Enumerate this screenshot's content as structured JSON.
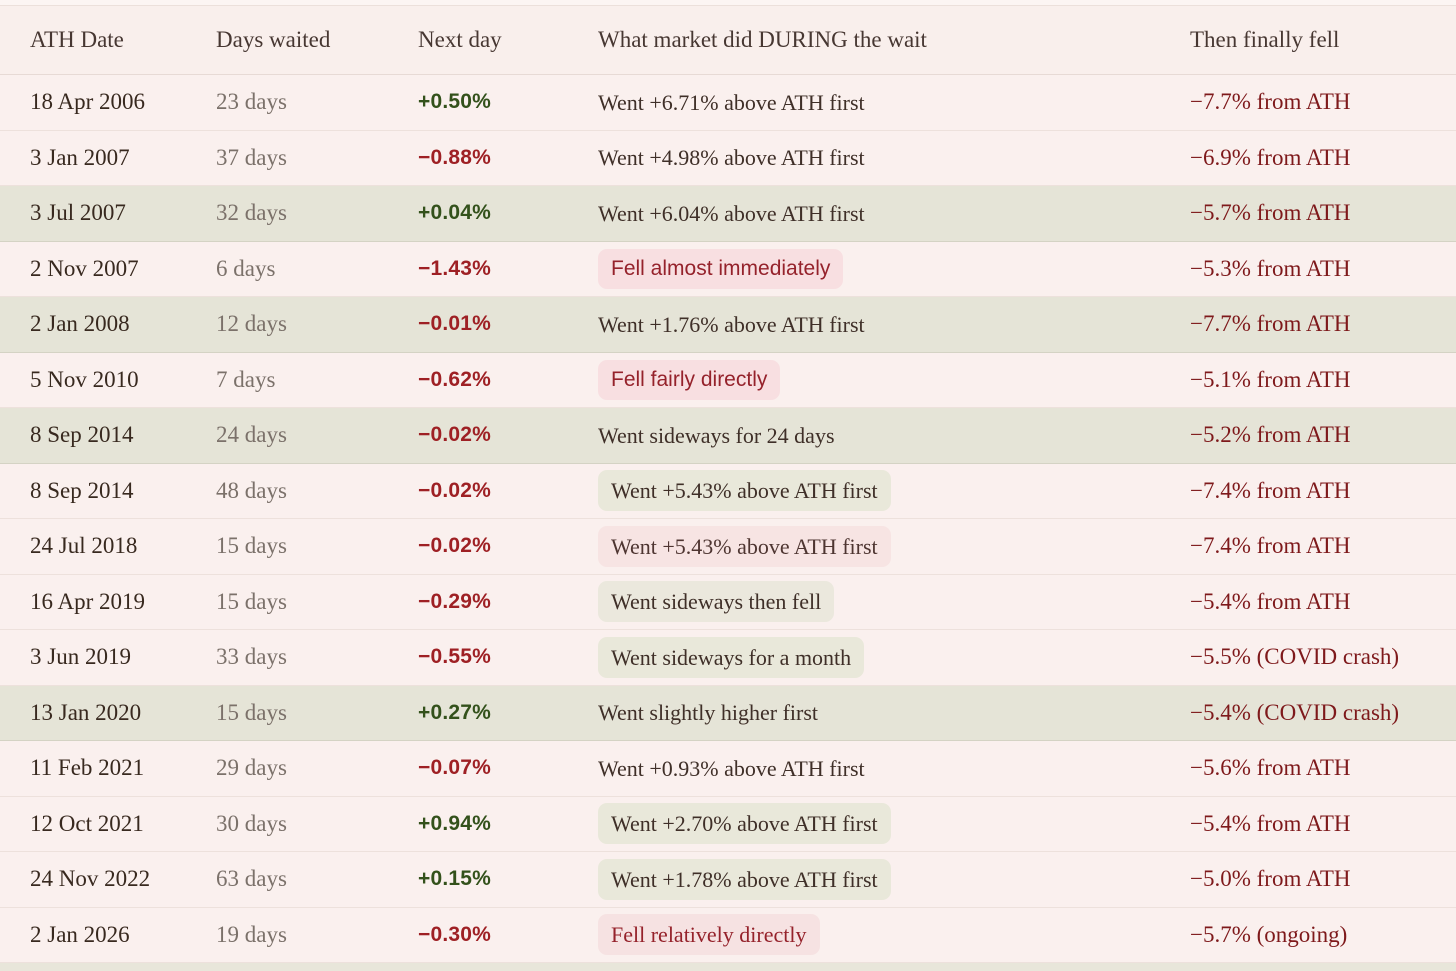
{
  "table": {
    "columns": [
      {
        "label": "ATH Date"
      },
      {
        "label": "Days waited"
      },
      {
        "label": "Next day"
      },
      {
        "label": "What market did DURING the wait"
      },
      {
        "label": "Then finally fell"
      }
    ],
    "rows": [
      {
        "date": "18 Apr 2006",
        "days": "23 days",
        "next_day": "+0.50%",
        "next_dir": "pos",
        "market": "Went +6.71% above ATH first",
        "market_style": "plain",
        "fell": "−7.7% from ATH",
        "row_bg": "pink"
      },
      {
        "date": "3 Jan 2007",
        "days": "37 days",
        "next_day": "−0.88%",
        "next_dir": "neg",
        "market": "Went +4.98% above ATH first",
        "market_style": "plain",
        "fell": "−6.9% from ATH",
        "row_bg": "pink"
      },
      {
        "date": "3 Jul 2007",
        "days": "32 days",
        "next_day": "+0.04%",
        "next_dir": "pos",
        "market": "Went +6.04% above ATH first",
        "market_style": "plain",
        "fell": "−5.7% from ATH",
        "row_bg": "green"
      },
      {
        "date": "2 Nov 2007",
        "days": "6 days",
        "next_day": "−1.43%",
        "next_dir": "neg",
        "market": "Fell almost immediately",
        "market_style": "pill-red-sans",
        "fell": "−5.3% from ATH",
        "row_bg": "pink"
      },
      {
        "date": "2 Jan 2008",
        "days": "12 days",
        "next_day": "−0.01%",
        "next_dir": "neg",
        "market": "Went +1.76% above ATH first",
        "market_style": "plain",
        "fell": "−7.7% from ATH",
        "row_bg": "green"
      },
      {
        "date": "5 Nov 2010",
        "days": "7 days",
        "next_day": "−0.62%",
        "next_dir": "neg",
        "market": "Fell fairly directly",
        "market_style": "pill-red-sans",
        "fell": "−5.1% from ATH",
        "row_bg": "pink"
      },
      {
        "date": "8 Sep 2014",
        "days": "24 days",
        "next_day": "−0.02%",
        "next_dir": "neg",
        "market": "Went sideways for 24 days",
        "market_style": "plain",
        "fell": "−5.2% from ATH",
        "row_bg": "green"
      },
      {
        "date": "8 Sep 2014",
        "days": "48 days",
        "next_day": "−0.02%",
        "next_dir": "neg",
        "market": "Went +5.43% above ATH first",
        "market_style": "pill-green",
        "fell": "−7.4% from ATH",
        "row_bg": "pink"
      },
      {
        "date": "24 Jul 2018",
        "days": "15 days",
        "next_day": "−0.02%",
        "next_dir": "neg",
        "market": "Went +5.43% above ATH first",
        "market_style": "pill-pink",
        "fell": "−7.4% from ATH",
        "row_bg": "pink"
      },
      {
        "date": "16 Apr 2019",
        "days": "15 days",
        "next_day": "−0.29%",
        "next_dir": "neg",
        "market": "Went sideways then fell",
        "market_style": "pill-tan",
        "fell": "−5.4% from ATH",
        "row_bg": "pink"
      },
      {
        "date": "3 Jun 2019",
        "days": "33 days",
        "next_day": "−0.55%",
        "next_dir": "neg",
        "market": "Went sideways for a month",
        "market_style": "pill-green",
        "fell": "−5.5% (COVID crash)",
        "row_bg": "pink"
      },
      {
        "date": "13 Jan 2020",
        "days": "15 days",
        "next_day": "+0.27%",
        "next_dir": "pos",
        "market": "Went slightly higher first",
        "market_style": "plain",
        "fell": "−5.4% (COVID crash)",
        "row_bg": "green"
      },
      {
        "date": "11 Feb 2021",
        "days": "29 days",
        "next_day": "−0.07%",
        "next_dir": "neg",
        "market": "Went +0.93% above ATH first",
        "market_style": "plain",
        "fell": "−5.6% from ATH",
        "row_bg": "pink"
      },
      {
        "date": "12 Oct 2021",
        "days": "30 days",
        "next_day": "+0.94%",
        "next_dir": "pos",
        "market": "Went +2.70% above ATH first",
        "market_style": "pill-green",
        "fell": "−5.4% from ATH",
        "row_bg": "pink"
      },
      {
        "date": "24 Nov 2022",
        "days": "63 days",
        "next_day": "+0.15%",
        "next_dir": "pos",
        "market": "Went +1.78% above ATH first",
        "market_style": "pill-green",
        "fell": "−5.0% from ATH",
        "row_bg": "pink"
      },
      {
        "date": "2 Jan 2026",
        "days": "19 days",
        "next_day": "−0.30%",
        "next_dir": "neg",
        "market": "Fell relatively directly",
        "market_style": "pill-red-serif",
        "fell": "−5.7% (ongoing)",
        "row_bg": "pink"
      }
    ]
  },
  "colors": {
    "positive_green": "#33511b",
    "negative_red": "#9e2024",
    "fell_red": "#7e191b",
    "pink_row_bg": "#faf0ee",
    "green_row_bg": "#e5e4d7",
    "pill_green_bg": "#e9e8da",
    "pill_pink_bg": "#f7e4e3",
    "pill_red_bg": "#f8dfe1",
    "pill_red_text": "#95222b"
  },
  "chart_data": {
    "type": "table",
    "title": "",
    "columns": [
      "ATH Date",
      "Days waited",
      "Next day",
      "What market did DURING the wait",
      "Then finally fell"
    ],
    "rows": [
      [
        "18 Apr 2006",
        "23 days",
        "+0.50%",
        "Went +6.71% above ATH first",
        "−7.7% from ATH"
      ],
      [
        "3 Jan 2007",
        "37 days",
        "−0.88%",
        "Went +4.98% above ATH first",
        "−6.9% from ATH"
      ],
      [
        "3 Jul 2007",
        "32 days",
        "+0.04%",
        "Went +6.04% above ATH first",
        "−5.7% from ATH"
      ],
      [
        "2 Nov 2007",
        "6 days",
        "−1.43%",
        "Fell almost immediately",
        "−5.3% from ATH"
      ],
      [
        "2 Jan 2008",
        "12 days",
        "−0.01%",
        "Went +1.76% above ATH first",
        "−7.7% from ATH"
      ],
      [
        "5 Nov 2010",
        "7 days",
        "−0.62%",
        "Fell fairly directly",
        "−5.1% from ATH"
      ],
      [
        "8 Sep 2014",
        "24 days",
        "−0.02%",
        "Went sideways for 24 days",
        "−5.2% from ATH"
      ],
      [
        "8 Sep 2014",
        "48 days",
        "−0.02%",
        "Went +5.43% above ATH first",
        "−7.4% from ATH"
      ],
      [
        "24 Jul 2018",
        "15 days",
        "−0.02%",
        "Went +5.43% above ATH first",
        "−7.4% from ATH"
      ],
      [
        "16 Apr 2019",
        "15 days",
        "−0.29%",
        "Went sideways then fell",
        "−5.4% from ATH"
      ],
      [
        "3 Jun 2019",
        "33 days",
        "−0.55%",
        "Went sideways for a month",
        "−5.5% (COVID crash)"
      ],
      [
        "13 Jan 2020",
        "15 days",
        "+0.27%",
        "Went slightly higher first",
        "−5.4% (COVID crash)"
      ],
      [
        "11 Feb 2021",
        "29 days",
        "−0.07%",
        "Went +0.93% above ATH first",
        "−5.6% from ATH"
      ],
      [
        "12 Oct 2021",
        "30 days",
        "+0.94%",
        "Went +2.70% above ATH first",
        "−5.4% from ATH"
      ],
      [
        "24 Nov 2022",
        "63 days",
        "+0.15%",
        "Went +1.78% above ATH first",
        "−5.0% from ATH"
      ],
      [
        "2 Jan 2026",
        "19 days",
        "−0.30%",
        "Fell relatively directly",
        "−5.7% (ongoing)"
      ]
    ]
  }
}
